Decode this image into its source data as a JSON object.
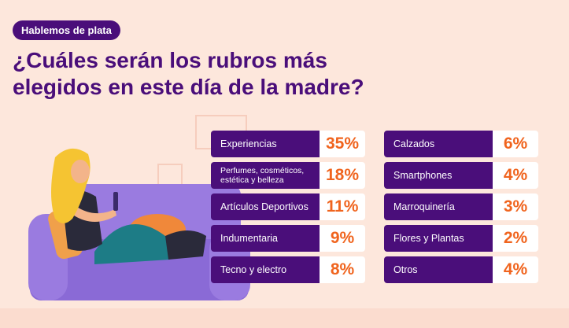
{
  "badge": "Hablemos de plata",
  "title": "¿Cuáles serán los rubros más elegidos en este día de la madre?",
  "colors": {
    "accent": "#4a0e7a",
    "value": "#f0641e",
    "background": "#fde7dc"
  },
  "chart_data": {
    "type": "table",
    "categories": [
      "Experiencias",
      "Perfumes, cosméticos, estética y belleza",
      "Artículos Deportivos",
      "Indumentaria",
      "Tecno y electro",
      "Calzados",
      "Smartphones",
      "Marroquinería",
      "Flores y Plantas",
      "Otros"
    ],
    "labels": [
      "35%",
      "18%",
      "11%",
      "9%",
      "8%",
      "6%",
      "4%",
      "3%",
      "2%",
      "4%"
    ],
    "values": [
      35,
      18,
      11,
      9,
      8,
      6,
      4,
      3,
      2,
      4
    ],
    "unit": "%"
  }
}
